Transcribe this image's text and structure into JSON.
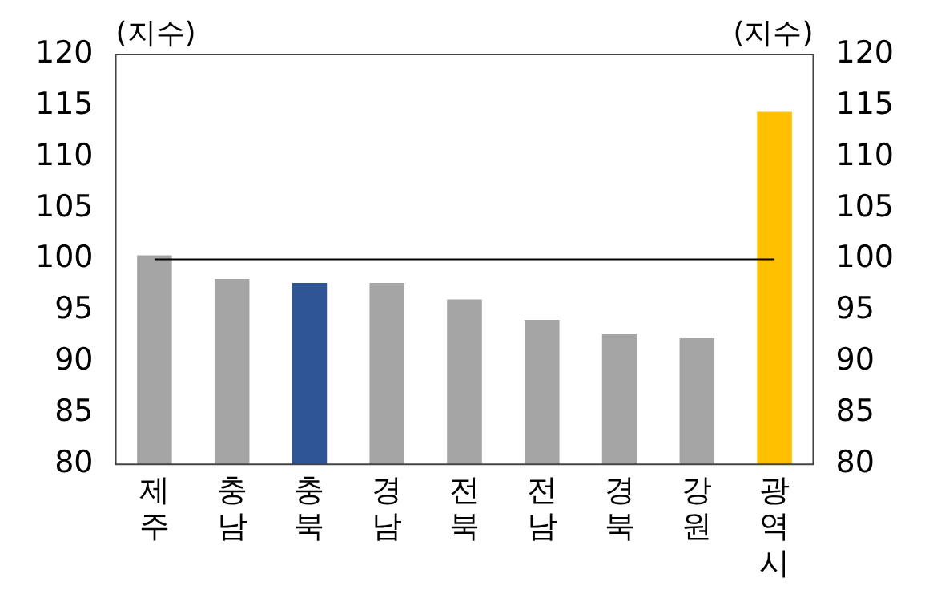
{
  "chart_data": {
    "type": "bar",
    "ylabel": "(지수)",
    "y2label": "(지수)",
    "categories": [
      "제주",
      "충남",
      "충북",
      "경남",
      "전북",
      "전남",
      "경북",
      "강원",
      "광역시"
    ],
    "values": [
      100.4,
      98.1,
      97.7,
      97.7,
      96.1,
      94.1,
      92.7,
      92.3,
      114.4
    ],
    "colors": [
      "#a5a5a5",
      "#a5a5a5",
      "#2f5597",
      "#a5a5a5",
      "#a5a5a5",
      "#a5a5a5",
      "#a5a5a5",
      "#a5a5a5",
      "#ffc000"
    ],
    "ylim": [
      80,
      120
    ],
    "yticks": [
      80,
      85,
      90,
      95,
      100,
      105,
      110,
      115,
      120
    ],
    "y2lim": [
      80,
      120
    ],
    "y2ticks": [
      80,
      85,
      90,
      95,
      100,
      105,
      110,
      115,
      120
    ],
    "ref_lines": [
      {
        "axis": "y",
        "value": 100,
        "color": "#000000"
      }
    ],
    "grid": false,
    "legend": false
  }
}
